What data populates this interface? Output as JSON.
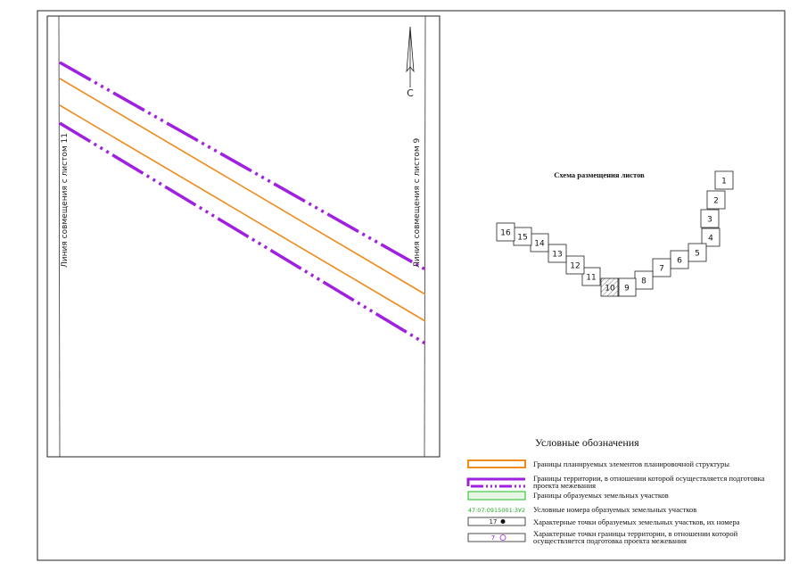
{
  "sheet": {
    "left_label": "Линия совмещения с листом 11",
    "right_label": "Линия совмещения с листом 9",
    "north": "С"
  },
  "index": {
    "title": "Схема размещения листов",
    "sheets": [
      "1",
      "2",
      "3",
      "4",
      "5",
      "6",
      "7",
      "8",
      "9",
      "10",
      "11",
      "12",
      "13",
      "14",
      "15",
      "16"
    ]
  },
  "legend": {
    "title": "Условные обозначения",
    "items": [
      {
        "label": "Границы планируемых элементов планировочной структуры"
      },
      {
        "label": "Границы территории, в отношении которой осуществляется подготовка проекта межевания"
      },
      {
        "label": "Границы образуемых земельных участков"
      },
      {
        "sample": "47:07:0915001:3У2",
        "label": "Условные номера образуемых земельных участков"
      },
      {
        "sample": "17",
        "label": "Характерные точки образуемых земельных участков, их номера"
      },
      {
        "sample": "7",
        "label": "Характерные точки границы территории, в отношении которой осуществляется подготовка проекта межевания"
      }
    ]
  }
}
